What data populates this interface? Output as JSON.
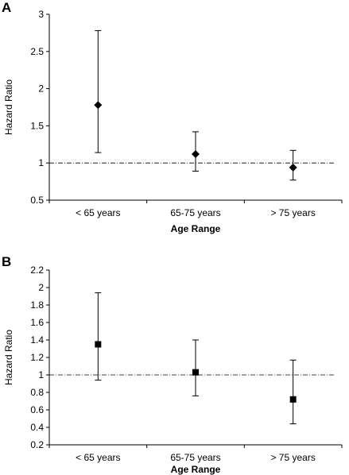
{
  "chart_data": [
    {
      "panel_label": "A",
      "type": "scatter",
      "categories": [
        "< 65 years",
        "65-75 years",
        "> 75 years"
      ],
      "marker": "diamond",
      "values": [
        1.78,
        1.12,
        0.94
      ],
      "ci_lower": [
        1.14,
        0.89,
        0.77
      ],
      "ci_upper": [
        2.78,
        1.42,
        1.17
      ],
      "reference_line": 1,
      "ylim": [
        0.5,
        3
      ],
      "yticks": [
        0.5,
        1,
        1.5,
        2,
        2.5,
        3
      ],
      "ytick_labels": [
        "0.5",
        "1",
        "1.5",
        "2",
        "2.5",
        "3"
      ],
      "xlabel": "Age Range",
      "ylabel": "Hazard Ratio",
      "grid": false
    },
    {
      "panel_label": "B",
      "type": "scatter",
      "categories": [
        "< 65 years",
        "65-75 years",
        "> 75 years"
      ],
      "marker": "square",
      "values": [
        1.35,
        1.03,
        0.72
      ],
      "ci_lower": [
        0.94,
        0.76,
        0.44
      ],
      "ci_upper": [
        1.94,
        1.4,
        1.17
      ],
      "reference_line": 1,
      "ylim": [
        0.2,
        2.2
      ],
      "yticks": [
        0.2,
        0.4,
        0.6,
        0.8,
        1,
        1.2,
        1.4,
        1.6,
        1.8,
        2,
        2.2
      ],
      "ytick_labels": [
        "0.2",
        "0.4",
        "0.6",
        "0.8",
        "1",
        "1.2",
        "1.4",
        "1.6",
        "1.8",
        "2",
        "2.2"
      ],
      "xlabel": "Age Range",
      "ylabel": "Hazard Ratio",
      "grid": false
    }
  ]
}
